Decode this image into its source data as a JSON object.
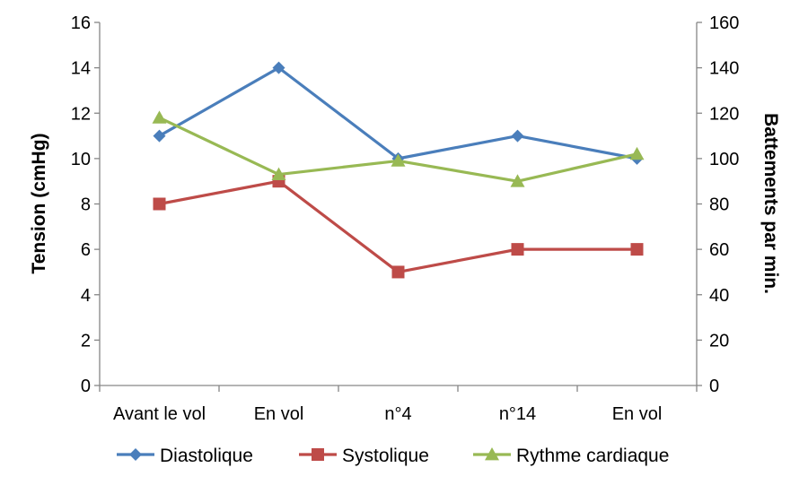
{
  "chart_data": {
    "type": "line",
    "categories": [
      "Avant le vol",
      "En vol",
      "n°4",
      "n°14",
      "En vol"
    ],
    "y_left": {
      "label": "Tension (cmHg)",
      "ylim": [
        0,
        16
      ],
      "ticks": [
        0,
        2,
        4,
        6,
        8,
        10,
        12,
        14,
        16
      ],
      "tick_labels": [
        "0",
        "2",
        "4",
        "6",
        "8",
        "10",
        "12",
        "14",
        "16"
      ]
    },
    "y_right": {
      "label": "Battements par min.",
      "ylim": [
        0,
        160
      ],
      "ticks": [
        0,
        20,
        40,
        60,
        80,
        100,
        120,
        140,
        160
      ],
      "tick_labels": [
        "0",
        "20",
        "40",
        "60",
        "80",
        "100",
        "120",
        "140",
        "160"
      ]
    },
    "series": [
      {
        "name": "Diastolique",
        "axis": "left",
        "values": [
          11,
          14,
          10,
          11,
          10
        ],
        "color": "#4a7ebb",
        "marker": "diamond"
      },
      {
        "name": "Systolique",
        "axis": "left",
        "values": [
          8,
          9,
          5,
          6,
          6
        ],
        "color": "#be4b48",
        "marker": "square"
      },
      {
        "name": "Rythme cardiaque",
        "axis": "right",
        "values": [
          118,
          93,
          99,
          90,
          102
        ],
        "color": "#98b954",
        "marker": "triangle"
      }
    ],
    "grid": false,
    "legend_position": "bottom"
  }
}
